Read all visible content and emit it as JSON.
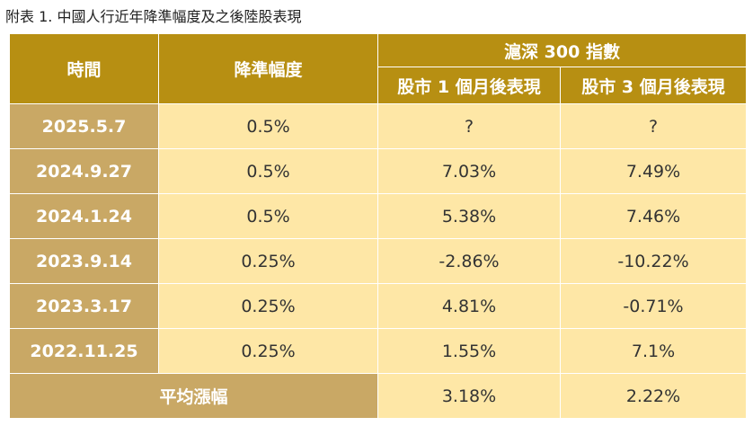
{
  "caption": "附表 1. 中國人行近年降準幅度及之後陸股表現",
  "header": {
    "date_label": "時間",
    "cut_label": "降準幅度",
    "index_label": "滬深 300 指數",
    "perf_1m_label": "股市 1 個月後表現",
    "perf_3m_label": "股市 3 個月後表現"
  },
  "rows": [
    {
      "date": "2025.5.7",
      "cut": "0.5%",
      "perf_1m": "?",
      "perf_3m": "?"
    },
    {
      "date": "2024.9.27",
      "cut": "0.5%",
      "perf_1m": "7.03%",
      "perf_3m": "7.49%"
    },
    {
      "date": "2024.1.24",
      "cut": "0.5%",
      "perf_1m": "5.38%",
      "perf_3m": "7.46%"
    },
    {
      "date": "2023.9.14",
      "cut": "0.25%",
      "perf_1m": "-2.86%",
      "perf_3m": "-10.22%"
    },
    {
      "date": "2023.3.17",
      "cut": "0.25%",
      "perf_1m": "4.81%",
      "perf_3m": "-0.71%"
    },
    {
      "date": "2022.11.25",
      "cut": "0.25%",
      "perf_1m": "1.55%",
      "perf_3m": "7.1%"
    }
  ],
  "average": {
    "label": "平均漲幅",
    "perf_1m": "3.18%",
    "perf_3m": "2.22%"
  },
  "colors": {
    "header_bg": "#b78f12",
    "date_bg": "#c9a865",
    "cell_bg": "#fee7a6",
    "border": "#ffffff"
  }
}
